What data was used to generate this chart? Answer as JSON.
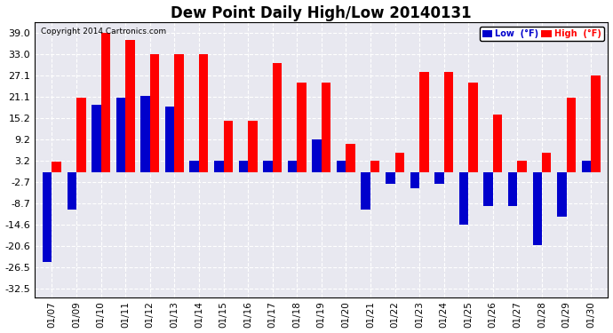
{
  "title": "Dew Point Daily High/Low 20140131",
  "copyright": "Copyright 2014 Cartronics.com",
  "dates": [
    "01/07",
    "01/09",
    "01/10",
    "01/11",
    "01/12",
    "01/13",
    "01/14",
    "01/15",
    "01/16",
    "01/17",
    "01/18",
    "01/19",
    "01/20",
    "01/21",
    "01/22",
    "01/23",
    "01/24",
    "01/25",
    "01/26",
    "01/27",
    "01/28",
    "01/29",
    "01/30"
  ],
  "high": [
    3.0,
    21.0,
    39.0,
    37.0,
    33.0,
    33.0,
    33.0,
    14.5,
    14.5,
    30.5,
    25.0,
    25.0,
    8.0,
    3.2,
    5.5,
    28.0,
    28.0,
    25.0,
    16.2,
    3.2,
    5.5,
    21.0,
    27.1
  ],
  "low": [
    -25.0,
    -10.5,
    19.0,
    21.0,
    21.5,
    18.5,
    3.2,
    3.2,
    3.2,
    3.2,
    3.2,
    9.2,
    3.2,
    -10.5,
    -3.2,
    -4.5,
    -3.2,
    -14.6,
    -9.5,
    -9.5,
    -20.5,
    -12.5,
    3.2
  ],
  "yticks": [
    39.0,
    33.0,
    27.1,
    21.1,
    15.2,
    9.2,
    3.2,
    -2.7,
    -8.7,
    -14.6,
    -20.6,
    -26.5,
    -32.5
  ],
  "ylim": [
    -35.0,
    42.0
  ],
  "bar_width": 0.38,
  "high_color": "#ff0000",
  "low_color": "#0000cc",
  "bg_color": "#ffffff",
  "grid_color": "#aaaaaa",
  "title_fontsize": 12,
  "legend_high_label": "High  (°F)",
  "legend_low_label": "Low  (°F)"
}
